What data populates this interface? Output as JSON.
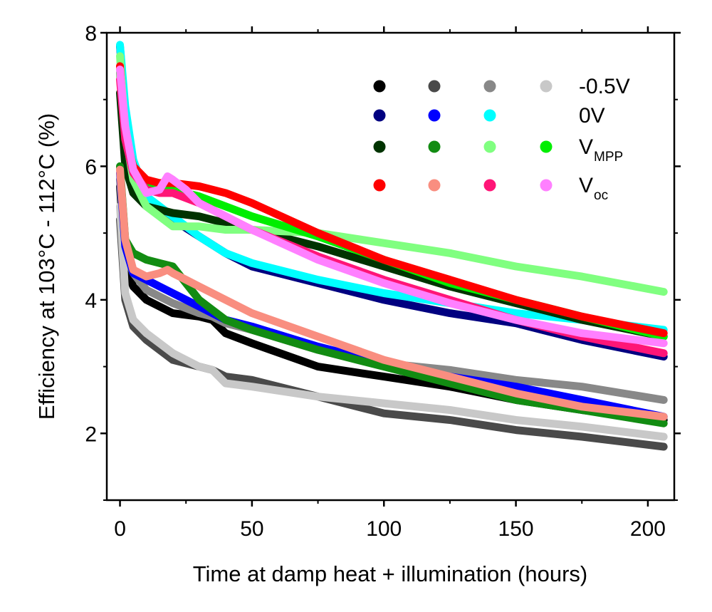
{
  "chart_data": {
    "type": "line",
    "title": "",
    "xlabel": "Time at damp heat + illumination (hours)",
    "ylabel": "Efficiency at 103°C - 112°C (%)",
    "xlim": [
      -5,
      210
    ],
    "ylim": [
      1,
      8
    ],
    "x_ticks": [
      0,
      50,
      100,
      150,
      200
    ],
    "x_tick_labels": [
      "0",
      "50",
      "100",
      "150",
      "200"
    ],
    "y_ticks": [
      2,
      4,
      6,
      8
    ],
    "y_tick_labels": [
      "2",
      "4",
      "6",
      "8"
    ],
    "legend_position": "top-right",
    "legend": {
      "rows": [
        {
          "label": "-0.5V",
          "label_main": "-0.5V",
          "label_sub": "",
          "colors": [
            "#000000",
            "#4a4a4a",
            "#888888",
            "#c8c8c8"
          ]
        },
        {
          "label": "0V",
          "label_main": "0V",
          "label_sub": "",
          "colors": [
            "#000080",
            "#0000ff",
            "#00ffff"
          ]
        },
        {
          "label": "VMPP",
          "label_main": "V",
          "label_sub": "MPP",
          "colors": [
            "#003300",
            "#128c12",
            "#80ff80",
            "#00ee00"
          ]
        },
        {
          "label": "Voc",
          "label_main": "V",
          "label_sub": "oc",
          "colors": [
            "#ff0000",
            "#f98e80",
            "#ff1577",
            "#ff80ff"
          ]
        }
      ]
    },
    "series": [
      {
        "name": "-0.5V (1)",
        "color": "#000000",
        "x": [
          0,
          2,
          5,
          10,
          20,
          30,
          35,
          40,
          50,
          75,
          100,
          125,
          150,
          175,
          206
        ],
        "y": [
          5.7,
          4.5,
          4.2,
          4.0,
          3.8,
          3.75,
          3.7,
          3.5,
          3.35,
          3.0,
          2.85,
          2.7,
          2.5,
          2.35,
          2.2
        ]
      },
      {
        "name": "-0.5V (2)",
        "color": "#4a4a4a",
        "x": [
          0,
          2,
          5,
          10,
          20,
          30,
          35,
          40,
          50,
          75,
          100,
          125,
          150,
          175,
          206
        ],
        "y": [
          5.2,
          4.0,
          3.6,
          3.4,
          3.1,
          3.0,
          2.95,
          2.85,
          2.8,
          2.55,
          2.3,
          2.2,
          2.05,
          1.95,
          1.8
        ]
      },
      {
        "name": "-0.5V (3)",
        "color": "#888888",
        "x": [
          0,
          2,
          5,
          10,
          20,
          30,
          35,
          40,
          50,
          75,
          100,
          125,
          150,
          175,
          206
        ],
        "y": [
          5.8,
          4.7,
          4.4,
          4.15,
          3.95,
          3.8,
          3.75,
          3.65,
          3.55,
          3.25,
          3.05,
          2.95,
          2.8,
          2.7,
          2.5
        ]
      },
      {
        "name": "-0.5V (4)",
        "color": "#c8c8c8",
        "x": [
          0,
          2,
          5,
          10,
          20,
          30,
          35,
          40,
          50,
          75,
          100,
          125,
          150,
          175,
          206
        ],
        "y": [
          5.4,
          4.1,
          3.7,
          3.5,
          3.2,
          3.0,
          2.95,
          2.75,
          2.7,
          2.55,
          2.45,
          2.35,
          2.2,
          2.1,
          1.95
        ]
      },
      {
        "name": "0V (1)",
        "color": "#000080",
        "x": [
          0,
          2,
          5,
          10,
          20,
          30,
          40,
          50,
          75,
          100,
          125,
          150,
          175,
          206
        ],
        "y": [
          7.8,
          6.8,
          6.0,
          5.5,
          5.2,
          4.95,
          4.7,
          4.5,
          4.25,
          4.0,
          3.8,
          3.65,
          3.4,
          3.15
        ]
      },
      {
        "name": "0V (2)",
        "color": "#0000ff",
        "x": [
          0,
          2,
          5,
          10,
          15,
          20,
          30,
          40,
          50,
          75,
          100,
          125,
          150,
          175,
          206
        ],
        "y": [
          5.9,
          4.8,
          4.4,
          4.3,
          4.2,
          4.1,
          3.9,
          3.7,
          3.6,
          3.3,
          3.05,
          2.85,
          2.7,
          2.5,
          2.25
        ]
      },
      {
        "name": "0V (3)",
        "color": "#00ffff",
        "x": [
          0,
          2,
          5,
          10,
          20,
          30,
          40,
          50,
          75,
          100,
          125,
          150,
          175,
          206
        ],
        "y": [
          7.82,
          6.9,
          6.1,
          5.55,
          5.25,
          4.95,
          4.7,
          4.55,
          4.3,
          4.1,
          3.95,
          3.8,
          3.7,
          3.55
        ]
      },
      {
        "name": "VMPP (1)",
        "color": "#003300",
        "x": [
          0,
          2,
          5,
          10,
          20,
          30,
          35,
          40,
          50,
          75,
          100,
          125,
          150,
          175,
          206
        ],
        "y": [
          7.1,
          6.0,
          5.6,
          5.4,
          5.3,
          5.25,
          5.2,
          5.15,
          5.05,
          4.8,
          4.5,
          4.2,
          3.95,
          3.7,
          3.45
        ]
      },
      {
        "name": "VMPP (2)",
        "color": "#128c12",
        "x": [
          0,
          2,
          5,
          10,
          15,
          20,
          30,
          40,
          50,
          75,
          100,
          125,
          150,
          175,
          206
        ],
        "y": [
          6.0,
          4.9,
          4.7,
          4.6,
          4.55,
          4.5,
          4.0,
          3.7,
          3.55,
          3.25,
          3.0,
          2.75,
          2.5,
          2.35,
          2.15
        ]
      },
      {
        "name": "VMPP (3)",
        "color": "#80ff80",
        "x": [
          0,
          2,
          5,
          10,
          20,
          30,
          40,
          50,
          75,
          100,
          125,
          150,
          175,
          206
        ],
        "y": [
          7.65,
          6.5,
          5.8,
          5.4,
          5.1,
          5.1,
          5.05,
          5.05,
          5.0,
          4.85,
          4.7,
          4.5,
          4.35,
          4.12
        ]
      },
      {
        "name": "VMPP (4)",
        "color": "#00ee00",
        "x": [
          0,
          2,
          5,
          10,
          20,
          30,
          40,
          50,
          75,
          100,
          125,
          150,
          175,
          206
        ],
        "y": [
          7.4,
          6.5,
          6.0,
          5.75,
          5.65,
          5.55,
          5.4,
          5.25,
          4.95,
          4.6,
          4.25,
          4.0,
          3.75,
          3.45
        ]
      },
      {
        "name": "Voc (1)",
        "color": "#ff0000",
        "x": [
          0,
          2,
          5,
          10,
          15,
          20,
          30,
          40,
          50,
          75,
          100,
          125,
          150,
          175,
          206
        ],
        "y": [
          7.5,
          6.4,
          6.0,
          5.8,
          5.75,
          5.75,
          5.7,
          5.6,
          5.45,
          5.0,
          4.6,
          4.3,
          4.0,
          3.75,
          3.5
        ]
      },
      {
        "name": "Voc (2)",
        "color": "#f98e80",
        "x": [
          0,
          2,
          5,
          10,
          15,
          18,
          20,
          25,
          30,
          40,
          50,
          75,
          100,
          125,
          150,
          175,
          206
        ],
        "y": [
          5.95,
          4.9,
          4.45,
          4.35,
          4.4,
          4.45,
          4.4,
          4.3,
          4.2,
          4.0,
          3.8,
          3.45,
          3.1,
          2.85,
          2.6,
          2.4,
          2.25
        ]
      },
      {
        "name": "Voc (3)",
        "color": "#ff1577",
        "x": [
          0,
          2,
          5,
          10,
          15,
          20,
          30,
          40,
          50,
          75,
          100,
          125,
          150,
          175,
          206
        ],
        "y": [
          7.3,
          6.4,
          5.9,
          5.65,
          5.6,
          5.6,
          5.45,
          5.25,
          5.05,
          4.65,
          4.3,
          4.0,
          3.7,
          3.45,
          3.2
        ]
      },
      {
        "name": "Voc (4)",
        "color": "#ff80ff",
        "x": [
          0,
          2,
          5,
          10,
          15,
          18,
          20,
          25,
          30,
          40,
          50,
          75,
          100,
          125,
          150,
          175,
          206
        ],
        "y": [
          7.45,
          6.6,
          5.95,
          5.6,
          5.65,
          5.85,
          5.8,
          5.65,
          5.45,
          5.25,
          5.05,
          4.6,
          4.25,
          3.95,
          3.7,
          3.5,
          3.35
        ]
      }
    ]
  }
}
